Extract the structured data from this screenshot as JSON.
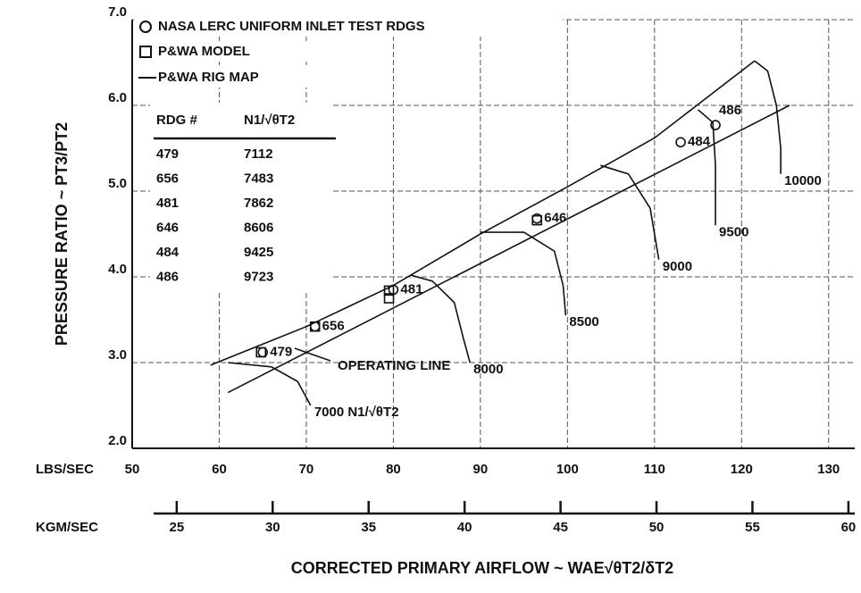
{
  "chart_data": {
    "type": "compressor-map",
    "ylabel": "PRESSURE RATIO ~ PT3/PT2",
    "xlabel": "CORRECTED PRIMARY AIRFLOW ~ WAE√θT2/δT2",
    "x_unit": "LBS/SEC",
    "x2_unit": "KGM/SEC",
    "xlim": [
      50,
      133
    ],
    "xticks": [
      50,
      60,
      70,
      80,
      90,
      100,
      110,
      120,
      130
    ],
    "x2lim": [
      22.68,
      60.33
    ],
    "x2ticks": [
      25,
      30,
      35,
      40,
      45,
      50,
      55,
      60
    ],
    "ylim": [
      2.0,
      7.0
    ],
    "yticks": [
      {
        "value": 2,
        "label": "2.0"
      },
      {
        "value": 3,
        "label": "3.0"
      },
      {
        "value": 4,
        "label": "4.0"
      },
      {
        "value": 5,
        "label": "5.0"
      },
      {
        "value": 6,
        "label": "6.0"
      },
      {
        "value": 7,
        "label": "7.0"
      }
    ],
    "grid": true,
    "series": [
      {
        "name": "NASA LERC UNIFORM INLET TEST RDGS",
        "marker": "circle",
        "color": "#111111",
        "x": [
          65,
          71,
          80,
          96.5,
          113,
          117
        ],
        "y": [
          3.12,
          3.42,
          3.85,
          4.68,
          5.57,
          5.77
        ],
        "labels": [
          "479",
          "656",
          "481",
          "646",
          "484",
          "486"
        ]
      },
      {
        "name": "P&WA MODEL",
        "marker": "square",
        "color": "#111111",
        "x": [
          64.8,
          71,
          79.5,
          79.5,
          96.5
        ],
        "y": [
          3.12,
          3.42,
          3.84,
          3.75,
          4.66
        ]
      },
      {
        "name": "P&WA RIG MAP",
        "marker": "line",
        "color": "#111111",
        "x": [
          59,
          70,
          80,
          90,
          100,
          110,
          121.5
        ],
        "y": [
          2.97,
          3.42,
          3.9,
          4.5,
          5.05,
          5.62,
          6.52
        ]
      }
    ],
    "operating_line": {
      "label": "OPERATING LINE",
      "x": [
        61,
        125.5
      ],
      "y": [
        2.65,
        6.0
      ]
    },
    "speed_lines": [
      {
        "label": "7000 N1/√θT2",
        "x": [
          61,
          66,
          69,
          70.5
        ],
        "y": [
          3.0,
          2.95,
          2.78,
          2.5
        ]
      },
      {
        "label": "8000",
        "x": [
          82,
          84.5,
          87,
          88,
          88.8
        ],
        "y": [
          4.02,
          3.95,
          3.7,
          3.3,
          3.0
        ]
      },
      {
        "label": "8500",
        "x": [
          90,
          95,
          98.5,
          99.5,
          99.8
        ],
        "y": [
          4.52,
          4.52,
          4.3,
          3.9,
          3.55
        ]
      },
      {
        "label": "9000",
        "x": [
          103.8,
          107,
          109.5,
          110.5
        ],
        "y": [
          5.3,
          5.2,
          4.8,
          4.2
        ]
      },
      {
        "label": "9500",
        "x": [
          115,
          116.7,
          117,
          117
        ],
        "y": [
          5.95,
          5.8,
          5.3,
          4.6
        ]
      },
      {
        "label": "10000",
        "x": [
          121.5,
          123,
          124,
          124.5,
          124.5
        ],
        "y": [
          6.52,
          6.4,
          6.0,
          5.5,
          5.2
        ]
      }
    ],
    "table": {
      "columns": [
        "RDG #",
        "N1/√θT2"
      ],
      "rows": [
        [
          479,
          7112
        ],
        [
          656,
          7483
        ],
        [
          481,
          7862
        ],
        [
          646,
          8606
        ],
        [
          484,
          9425
        ],
        [
          486,
          9723
        ]
      ]
    }
  }
}
